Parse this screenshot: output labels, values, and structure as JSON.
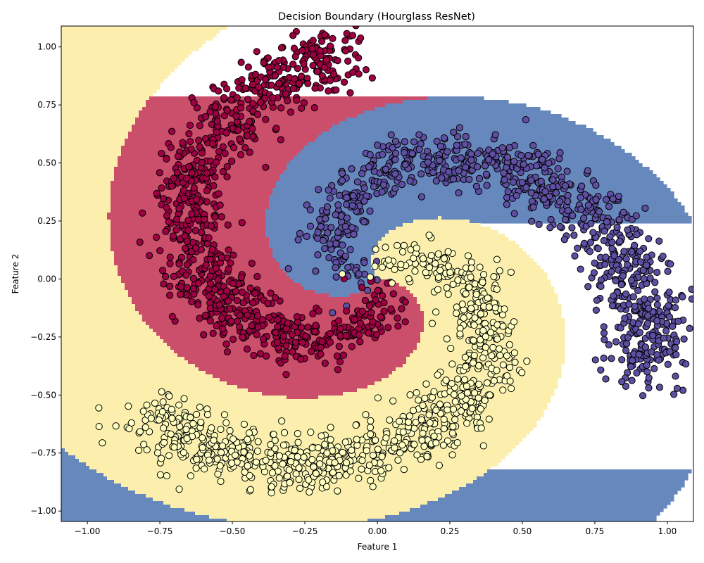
{
  "chart_data": {
    "type": "scatter",
    "title": "Decision Boundary (Hourglass ResNet)",
    "xlabel": "Feature 1",
    "ylabel": "Feature 2",
    "xlim": [
      -1.09,
      1.09
    ],
    "ylim": [
      -1.045,
      1.09
    ],
    "xticks": [
      -1.0,
      -0.75,
      -0.5,
      -0.25,
      0.0,
      0.25,
      0.5,
      0.75,
      1.0
    ],
    "xtick_labels": [
      "−1.00",
      "−0.75",
      "−0.50",
      "−0.25",
      "0.00",
      "0.25",
      "0.50",
      "0.75",
      "1.00"
    ],
    "yticks": [
      -1.0,
      -0.75,
      -0.5,
      -0.25,
      0.0,
      0.25,
      0.5,
      0.75,
      1.0
    ],
    "ytick_labels": [
      "−1.00",
      "−0.75",
      "−0.50",
      "−0.25",
      "0.00",
      "0.25",
      "0.50",
      "0.75",
      "1.00"
    ],
    "grid": false,
    "legend": "none",
    "background_regions": {
      "blue": "#6688bd",
      "red": "#cb4e6b",
      "yellow": "#fcefad"
    },
    "series": [
      {
        "color": "#5e4fa2",
        "points_per_arm": 900,
        "spiral_start_angle_deg": 0,
        "spiral_path_samples": [
          [
            0.0,
            0.0
          ],
          [
            -0.13,
            -0.18
          ],
          [
            -0.32,
            -0.32
          ],
          [
            -0.56,
            -0.28
          ],
          [
            -0.72,
            -0.06
          ],
          [
            -0.75,
            0.27
          ],
          [
            -0.6,
            0.62
          ],
          [
            -0.35,
            0.88
          ]
        ]
      },
      {
        "color": "#9e0142",
        "points_per_arm": 900,
        "spiral_start_angle_deg": 120,
        "spiral_path_samples": [
          [
            0.0,
            0.05
          ],
          [
            0.18,
            0.12
          ],
          [
            0.36,
            0.0
          ],
          [
            0.42,
            -0.28
          ],
          [
            0.28,
            -0.58
          ],
          [
            0.0,
            -0.76
          ],
          [
            -0.38,
            -0.8
          ],
          [
            -0.75,
            -0.58
          ],
          [
            -1.0,
            -0.08
          ]
        ]
      },
      {
        "color": "#ffffbf",
        "points_per_arm": 900,
        "spiral_start_angle_deg": 240,
        "spiral_path_samples": [
          [
            -0.08,
            0.0
          ],
          [
            -0.23,
            0.08
          ],
          [
            -0.3,
            0.32
          ],
          [
            -0.1,
            0.52
          ],
          [
            0.2,
            0.63
          ],
          [
            0.55,
            0.6
          ],
          [
            0.82,
            0.4
          ],
          [
            0.95,
            0.05
          ],
          [
            0.85,
            -0.4
          ],
          [
            0.5,
            -0.82
          ]
        ]
      }
    ]
  }
}
